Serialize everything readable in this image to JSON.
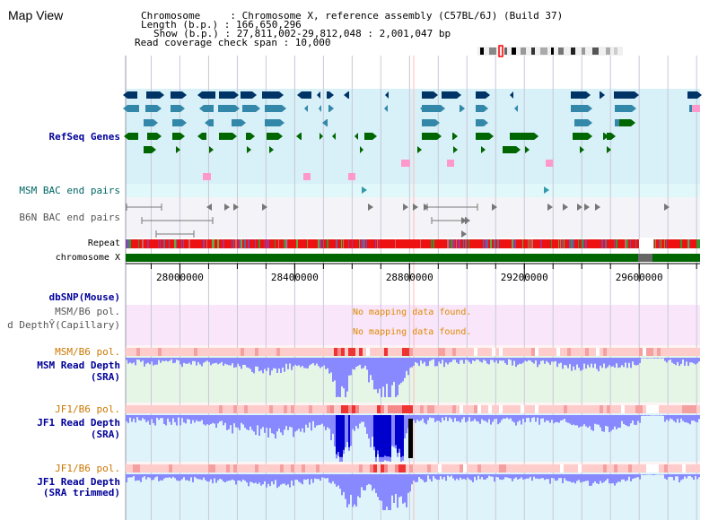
{
  "app": {
    "title": "Map View"
  },
  "info": {
    "lines": [
      "Chromosome     : Chromosome X, reference assembly (C57BL/6J) (Build 37)",
      "Length (b.p.) : 166,650,296",
      "Show (b.p.) : 27,811,002-29,812,048 : 2,001,047 bp",
      "Read coverage check span : 10,000"
    ]
  },
  "tracks": {
    "refseq": "RefSeq Genes",
    "msm_bac": "MSM BAC end pairs",
    "b6n_bac": "B6N BAC end pairs",
    "repeat": "Repeat",
    "chromosome": "chromosome X",
    "dbsnp": "dbSNP(Mouse)",
    "msm_pol_a": "MSM/B6 pol.",
    "depth_cap": "d DepthŶ(Capillary)",
    "msm_pol_b": "MSM/B6 pol.",
    "msm_depth_1": "MSM Read Depth",
    "msm_depth_2": "(SRA)",
    "jf1_pol_a": "JF1/B6 pol.",
    "jf1_depth_1": "JF1 Read Depth",
    "jf1_depth_2": "(SRA)",
    "jf1_pol_b": "JF1/B6 pol.",
    "jf1t_depth_1": "JF1 Read Depth",
    "jf1t_depth_2": "(SRA trimmed)"
  },
  "messages": {
    "no_mapping_1": "No mapping data found.",
    "no_mapping_2": "No mapping data found."
  },
  "axis": {
    "range": [
      27811002,
      29812048
    ],
    "ticks": [
      28000000,
      28400000,
      28800000,
      29200000,
      29600000
    ],
    "tick_labels": [
      "28000000",
      "28400000",
      "28800000",
      "29200000",
      "29600000"
    ],
    "minor_step": 100000
  },
  "colors": {
    "gene_dark": "#003366",
    "gene_mid": "#3388aa",
    "gene_green": "#006600",
    "gene_green_light": "#44aa44",
    "pink": "#ff99cc",
    "msm_bac": "#3399aa",
    "b6n_bac": "#777777",
    "repeat_red": "#ee1111",
    "chrom_green": "#006600",
    "chrom_gap": "#666666",
    "depth_light": "#8888ff",
    "depth_dark": "#0000cc",
    "pol_light": "#ffcccc",
    "pol_dark": "#ee3333"
  }
}
